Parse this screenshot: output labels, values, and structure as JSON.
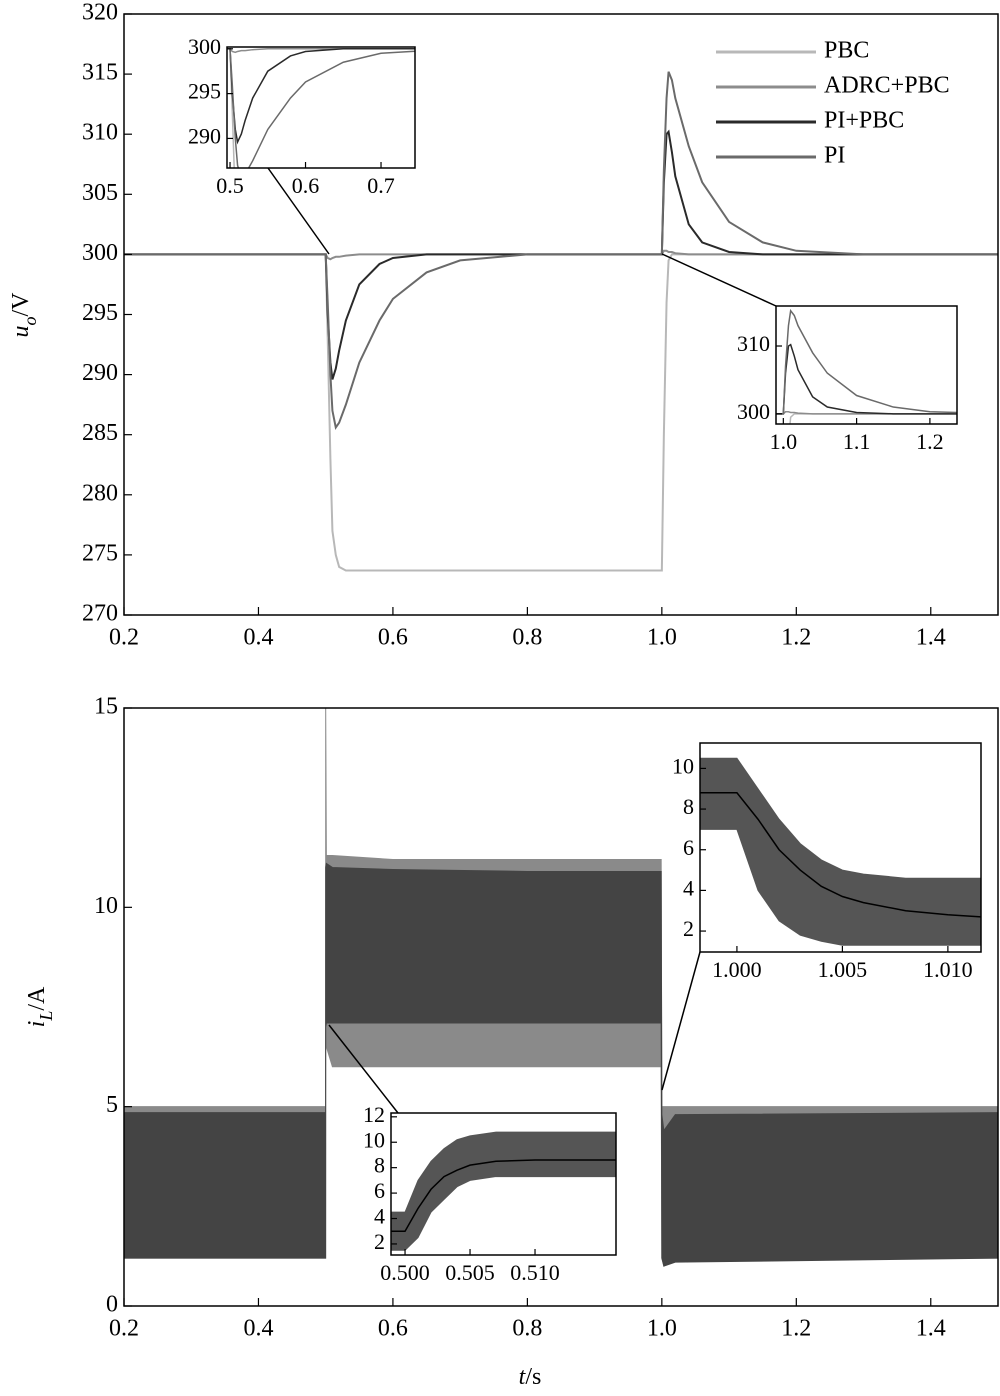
{
  "chart_data": [
    {
      "type": "line",
      "ylabel": {
        "symbol": "u",
        "sub": "o",
        "unit": "/V"
      },
      "x": [
        0.2,
        0.5,
        0.503,
        0.507,
        0.51,
        0.515,
        0.52,
        0.53,
        0.55,
        0.58,
        0.6,
        0.65,
        0.7,
        0.8,
        1.0,
        1.003,
        1.007,
        1.01,
        1.015,
        1.02,
        1.04,
        1.06,
        1.1,
        1.15,
        1.2,
        1.3,
        1.5
      ],
      "xlim": [
        0.2,
        1.5
      ],
      "ylim": [
        270,
        320
      ],
      "xticks": [
        0.2,
        0.4,
        0.6,
        0.8,
        {
          "value": 1,
          "label": "1.0"
        },
        1.2,
        1.4
      ],
      "yticks": [
        270,
        275,
        280,
        285,
        290,
        295,
        300,
        305,
        310,
        315,
        320
      ],
      "legend": "upper right",
      "series": [
        {
          "name": "PBC",
          "color": "#b8b8b8",
          "values": [
            300,
            300,
            293,
            283,
            277,
            275,
            274,
            273.7,
            273.7,
            273.7,
            273.7,
            273.7,
            273.7,
            273.7,
            273.7,
            285,
            296,
            299.5,
            300,
            300,
            300,
            300,
            300,
            300,
            300,
            300,
            300
          ]
        },
        {
          "name": "ADRC+PBC",
          "color": "#8c8c8c",
          "values": [
            300,
            300,
            299.7,
            299.6,
            299.7,
            299.8,
            299.8,
            299.9,
            300,
            300,
            300,
            300,
            300,
            300,
            300,
            300.3,
            300.3,
            300.2,
            300.2,
            300.1,
            300,
            300,
            300,
            300,
            300,
            300,
            300
          ]
        },
        {
          "name": "PI+PBC",
          "color": "#2a2a2a",
          "values": [
            300,
            300,
            295,
            291,
            289.6,
            290.5,
            292,
            294.5,
            297.5,
            299.2,
            299.7,
            300,
            300,
            300,
            300,
            306,
            310,
            310.2,
            308.5,
            306.5,
            302.5,
            301,
            300.2,
            300,
            300,
            300,
            300
          ]
        },
        {
          "name": "PI",
          "color": "#6a6a6a",
          "values": [
            300,
            300,
            296,
            290,
            287,
            285.6,
            286,
            287.5,
            291,
            294.5,
            296.3,
            298.5,
            299.5,
            300,
            300,
            307,
            313,
            315.2,
            314.5,
            313,
            309,
            306,
            302.7,
            301,
            300.3,
            300,
            300
          ]
        }
      ],
      "insets": [
        {
          "xlim": [
            0.496,
            0.745
          ],
          "ylim": [
            286.7,
            300.2
          ],
          "xticks": [
            0.5,
            0.6,
            0.7
          ],
          "yticks": [
            290,
            295,
            300
          ]
        },
        {
          "xlim": [
            0.99,
            1.237
          ],
          "ylim": [
            298.5,
            315.9
          ],
          "xticks": [
            {
              "value": 1,
              "label": "1.0"
            },
            1.1,
            1.2
          ],
          "yticks": [
            300,
            310
          ]
        }
      ]
    },
    {
      "type": "band",
      "ylabel": {
        "symbol": "i",
        "sub": "L",
        "unit": "/A"
      },
      "xlabel": {
        "symbol": "t",
        "unit": "/s"
      },
      "x": [
        0.2,
        0.4999,
        0.5,
        0.501,
        0.51,
        0.6,
        0.8,
        0.999,
        1.0,
        1.003,
        1.02,
        1.5
      ],
      "xlim": [
        0.2,
        1.5
      ],
      "ylim": [
        0,
        15
      ],
      "xticks": [
        0.2,
        0.4,
        0.6,
        0.8,
        {
          "value": 1,
          "label": "1.0"
        },
        1.2,
        1.4
      ],
      "yticks": [
        0,
        5,
        10,
        15
      ],
      "bands": [
        {
          "color": "#8a8a8a",
          "upper": [
            5.0,
            5.0,
            15,
            11.3,
            11.3,
            11.2,
            11.2,
            11.2,
            5.0,
            5.0,
            5.0,
            5.0
          ],
          "lower": [
            1.2,
            1.2,
            6.5,
            6.5,
            6.0,
            6.0,
            6.0,
            6.0,
            1.2,
            1.0,
            1.2,
            1.2
          ]
        },
        {
          "color": "#444444",
          "upper": [
            4.85,
            4.85,
            11.0,
            11.1,
            11.0,
            10.95,
            10.9,
            10.9,
            4.8,
            4.4,
            4.8,
            4.85
          ],
          "lower": [
            1.2,
            1.2,
            7.0,
            7.1,
            7.1,
            7.1,
            7.1,
            7.1,
            1.2,
            1.0,
            1.1,
            1.2
          ]
        }
      ],
      "insets": [
        {
          "x": [
            0.99825,
            1.0,
            1.001,
            1.002,
            1.003,
            1.004,
            1.005,
            1.006,
            1.008,
            1.01,
            1.01157
          ],
          "xlim": [
            0.99825,
            1.01157
          ],
          "ylim": [
            0.97,
            11.25
          ],
          "xticks": [
            {
              "value": 1,
              "label": "1.000"
            },
            1.005,
            {
              "value": 1.01,
              "label": "1.010"
            }
          ],
          "yticks": [
            2,
            4,
            6,
            8,
            10
          ],
          "bands": [
            {
              "color": "#555555",
              "upper": [
                10.5,
                10.5,
                9,
                7.5,
                6.3,
                5.5,
                5,
                4.8,
                4.6,
                4.6,
                4.6
              ],
              "lower": [
                7,
                7,
                4,
                2.5,
                1.8,
                1.5,
                1.3,
                1.3,
                1.3,
                1.3,
                1.3
              ]
            }
          ],
          "series": [
            {
              "color": "#000000",
              "values": [
                8.8,
                8.8,
                7.5,
                6,
                5,
                4.2,
                3.7,
                3.4,
                3.0,
                2.8,
                2.7
              ]
            }
          ]
        },
        {
          "x": [
            0.49892,
            0.5,
            0.501,
            0.502,
            0.503,
            0.504,
            0.505,
            0.507,
            0.51,
            0.513,
            0.51623
          ],
          "xlim": [
            0.49892,
            0.51623
          ],
          "ylim": [
            1.13,
            12.3
          ],
          "xticks": [
            {
              "value": 0.5,
              "label": "0.500"
            },
            0.505,
            {
              "value": 0.51,
              "label": "0.510"
            }
          ],
          "yticks": [
            2,
            4,
            6,
            8,
            10,
            12
          ],
          "bands": [
            {
              "color": "#555555",
              "upper": [
                4.5,
                4.5,
                7,
                8.5,
                9.5,
                10.2,
                10.5,
                10.8,
                10.8,
                10.8,
                10.8
              ],
              "lower": [
                1.5,
                1.5,
                2.5,
                4.5,
                5.5,
                6.5,
                7,
                7.3,
                7.3,
                7.3,
                7.3
              ]
            }
          ],
          "series": [
            {
              "color": "#000000",
              "values": [
                3,
                3,
                4.8,
                6.3,
                7.3,
                7.8,
                8.2,
                8.5,
                8.6,
                8.6,
                8.6
              ]
            }
          ]
        }
      ]
    }
  ]
}
